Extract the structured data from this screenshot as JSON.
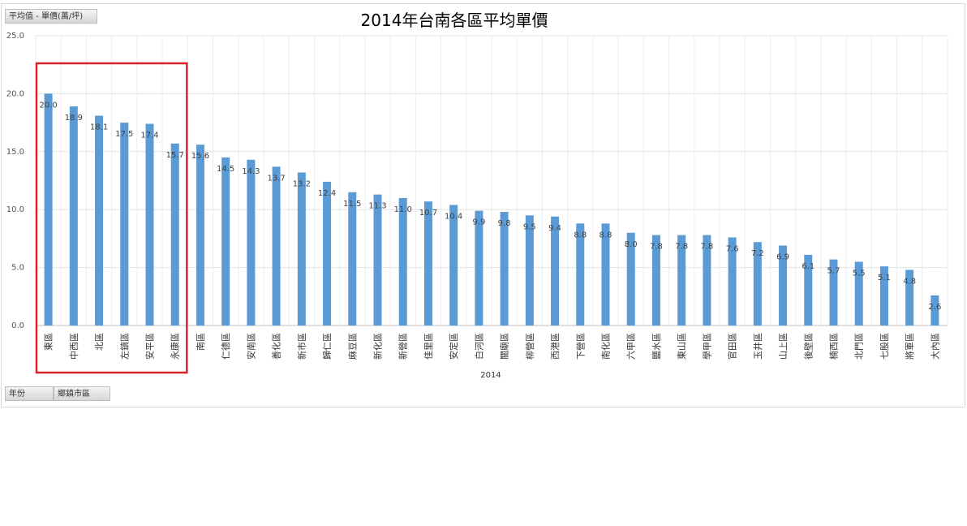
{
  "pivot_fields": {
    "value_field": "平均值 - 單價(萬/坪)",
    "row_field": "年份",
    "column_field": "鄉鎮市區"
  },
  "chart_data": {
    "type": "bar",
    "title": "2014年台南各區平均單價",
    "xlabel": "2014",
    "ylabel": "",
    "ylim": [
      0,
      25
    ],
    "yticks": [
      "0.0",
      "5.0",
      "10.0",
      "15.0",
      "20.0",
      "25.0"
    ],
    "grid": true,
    "bar_color": "#5b9bd5",
    "highlight_color": "#d9242b",
    "highlight_range": [
      0,
      5
    ],
    "categories": [
      "東區",
      "中西區",
      "北區",
      "左鎮區",
      "安平區",
      "永康區",
      "南區",
      "仁德區",
      "安南區",
      "善化區",
      "新市區",
      "歸仁區",
      "麻豆區",
      "新化區",
      "新營區",
      "佳里區",
      "安定區",
      "白河區",
      "關廟區",
      "柳營區",
      "西港區",
      "下營區",
      "南化區",
      "六甲區",
      "鹽水區",
      "東山區",
      "學甲區",
      "官田區",
      "玉井區",
      "山上區",
      "後壁區",
      "楠西區",
      "北門區",
      "七股區",
      "將軍區",
      "大內區"
    ],
    "values": [
      20.0,
      18.9,
      18.1,
      17.5,
      17.4,
      15.7,
      15.6,
      14.5,
      14.3,
      13.7,
      13.2,
      12.4,
      11.5,
      11.3,
      11.0,
      10.7,
      10.4,
      9.9,
      9.8,
      9.5,
      9.4,
      8.8,
      8.8,
      8.0,
      7.8,
      7.8,
      7.8,
      7.6,
      7.2,
      6.9,
      6.1,
      5.7,
      5.5,
      5.1,
      4.8,
      2.6
    ],
    "value_labels": [
      "20.0",
      "18.9",
      "18.1",
      "17.5",
      "17.4",
      "15.7",
      "15.6",
      "14.5",
      "14.3",
      "13.7",
      "13.2",
      "12.4",
      "11.5",
      "11.3",
      "11.0",
      "10.7",
      "10.4",
      "9.9",
      "9.8",
      "9.5",
      "9.4",
      "8.8",
      "8.8",
      "8.0",
      "7.8",
      "7.8",
      "7.8",
      "7.6",
      "7.2",
      "6.9",
      "6.1",
      "5.7",
      "5.5",
      "5.1",
      "4.8",
      "2.6"
    ]
  }
}
